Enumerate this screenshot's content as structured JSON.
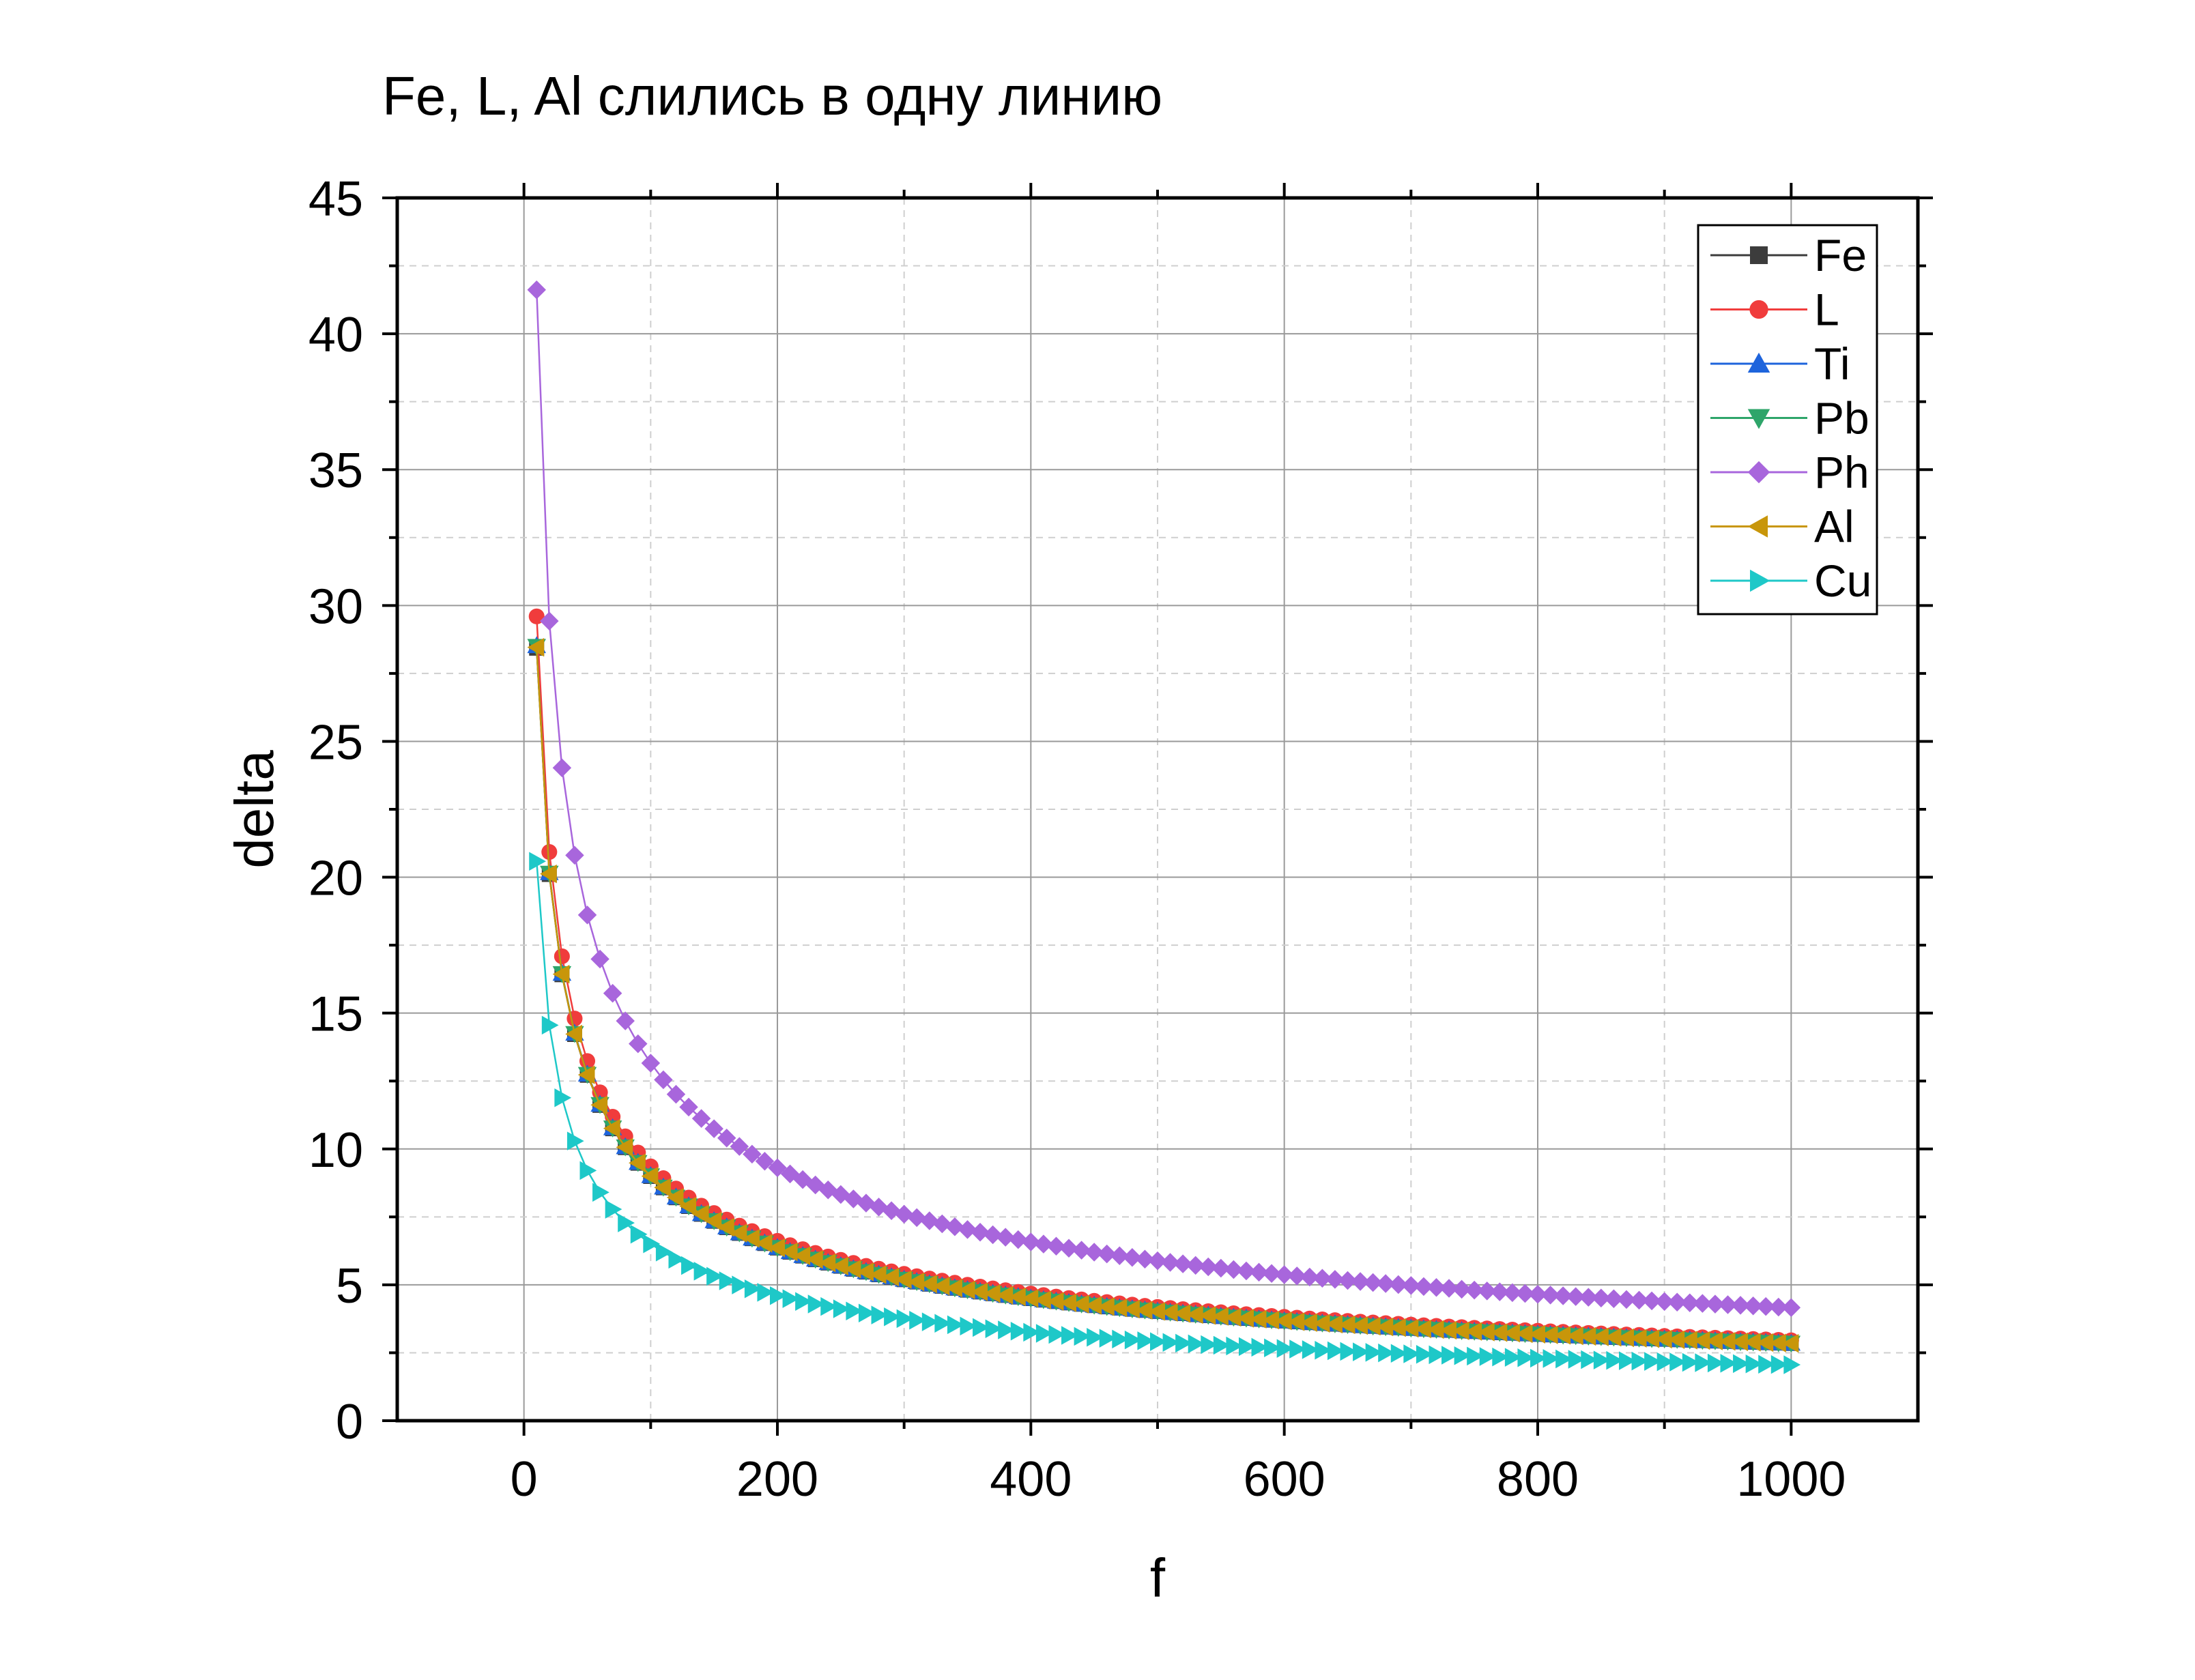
{
  "chart_data": {
    "type": "scatter",
    "title": "Fe, L, Al слились в одну линию",
    "xlabel": "f",
    "ylabel": "delta",
    "xlim": [
      -100,
      1100
    ],
    "ylim": [
      0,
      45
    ],
    "x_ticks": [
      0,
      200,
      400,
      600,
      800,
      1000
    ],
    "x_tick_labels": [
      "0",
      "200",
      "400",
      "600",
      "800",
      "1000"
    ],
    "y_ticks": [
      0,
      5,
      10,
      15,
      20,
      25,
      30,
      35,
      40,
      45
    ],
    "y_tick_labels": [
      "0",
      "5",
      "10",
      "15",
      "20",
      "25",
      "30",
      "35",
      "40",
      "45"
    ],
    "grid": true,
    "legend_position": "top-right",
    "x": {
      "start": 10,
      "stop": 1000,
      "step": 10
    },
    "series": [
      {
        "name": "Fe",
        "color": "#3c3c3c",
        "marker": "square",
        "k": 89.9
      },
      {
        "name": "L",
        "color": "#f03c3c",
        "marker": "circle",
        "k": 93.6
      },
      {
        "name": "Ti",
        "color": "#1e64dc",
        "marker": "triangle-up",
        "k": 90.2
      },
      {
        "name": "Pb",
        "color": "#2ea56a",
        "marker": "triangle-down",
        "k": 90.1
      },
      {
        "name": "Ph",
        "color": "#a866dc",
        "marker": "diamond",
        "k": 131.6
      },
      {
        "name": "Al",
        "color": "#c8960a",
        "marker": "triangle-left",
        "k": 90.0
      },
      {
        "name": "Cu",
        "color": "#1ec8c8",
        "marker": "triangle-right",
        "k": 65.1
      }
    ],
    "model": "delta = k / sqrt(f)"
  }
}
